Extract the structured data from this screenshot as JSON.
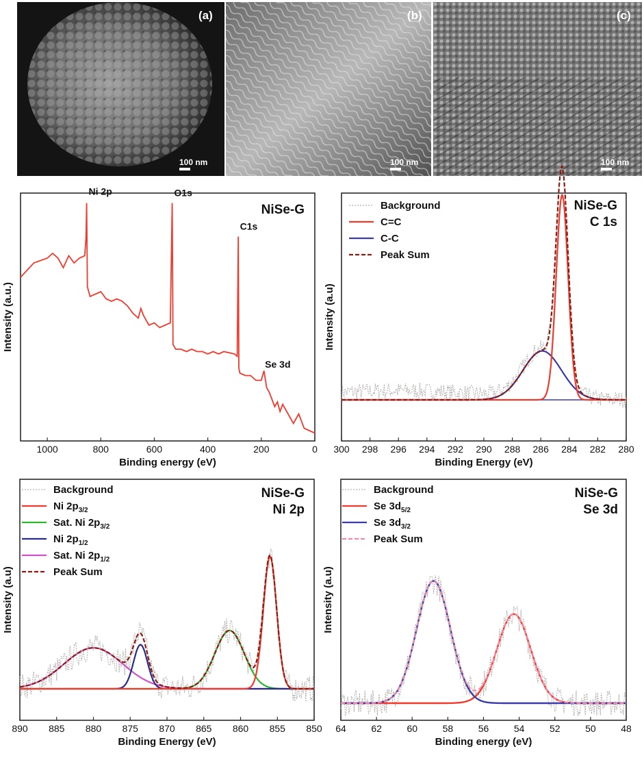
{
  "micrographs": [
    {
      "label": "(a)",
      "scale": "100 nm"
    },
    {
      "label": "(b)",
      "scale": "100 nm"
    },
    {
      "label": "(c)",
      "scale": "100 nm"
    }
  ],
  "colors": {
    "survey": "#f23a2c",
    "cc_double": "#f23a2c",
    "cc_single": "#3a3aa8",
    "peak_sum": "#8b1a0f",
    "background": "#b0aaa8",
    "sat_ni_32": "#2ab52a",
    "ni_12": "#2a2a8a",
    "sat_ni_12": "#d052c8",
    "se_32": "#3a3aa8",
    "se_peak_sum": "#f58aa8"
  },
  "chart_data": [
    {
      "type": "line",
      "panel_title": "NiSe-G",
      "xlabel": "Binding energy (eV)",
      "ylabel": "Intensity (a.u.)",
      "xlim": [
        1100,
        0
      ],
      "xticks": [
        1000,
        800,
        600,
        400,
        200,
        0
      ],
      "series": [
        {
          "x": [
            1100,
            1050,
            1000,
            980,
            960,
            940,
            920,
            900,
            880,
            860,
            855,
            853,
            850,
            840,
            820,
            800,
            780,
            760,
            740,
            720,
            700,
            680,
            660,
            650,
            640,
            620,
            600,
            580,
            560,
            540,
            533,
            530,
            520,
            500,
            480,
            460,
            440,
            420,
            400,
            380,
            360,
            340,
            300,
            290,
            286,
            284,
            280,
            260,
            240,
            220,
            200,
            190,
            180,
            170,
            160,
            150,
            140,
            130,
            120,
            100,
            80,
            60,
            40,
            20,
            0
          ],
          "y": [
            6.6,
            7.2,
            7.4,
            7.6,
            7.4,
            7.0,
            7.5,
            7.2,
            7.4,
            7.5,
            8.3,
            9.7,
            6.2,
            5.8,
            5.9,
            6.0,
            5.7,
            5.6,
            5.7,
            5.6,
            5.4,
            5.1,
            4.9,
            5.3,
            5.0,
            4.6,
            4.7,
            4.5,
            4.6,
            4.7,
            9.7,
            3.8,
            3.6,
            3.6,
            3.5,
            3.6,
            3.5,
            3.5,
            3.4,
            3.5,
            3.4,
            3.5,
            3.4,
            3.3,
            8.3,
            2.8,
            2.6,
            2.5,
            2.5,
            2.3,
            2.3,
            2.7,
            2.0,
            1.8,
            1.5,
            1.2,
            1.4,
            1.0,
            1.3,
            0.9,
            0.5,
            0.9,
            0.3,
            0.2,
            0.1
          ]
        }
      ],
      "annotations": [
        {
          "text": "Ni 2p",
          "x": 853
        },
        {
          "text": "O1s",
          "x": 531
        },
        {
          "text": "C1s",
          "x": 285
        },
        {
          "text": "Se 3d",
          "x": 130
        }
      ]
    },
    {
      "type": "line",
      "panel_title": [
        "NiSe-G",
        "C 1s"
      ],
      "xlabel": "Binding Energy (eV)",
      "ylabel": "Intensity (a.u)",
      "xlim": [
        300,
        280
      ],
      "xticks": [
        300,
        298,
        296,
        294,
        292,
        290,
        288,
        286,
        284,
        282,
        280
      ],
      "legend": [
        "Background",
        "C=C",
        "C-C",
        "Peak Sum"
      ],
      "series": [
        {
          "name": "C=C",
          "peaks": [
            {
              "center": 284.5,
              "height": 0.88,
              "sigma": 0.42
            }
          ]
        },
        {
          "name": "C-C",
          "peaks": [
            {
              "center": 285.9,
              "height": 0.21,
              "sigma": 1.35
            }
          ]
        },
        {
          "name": "Peak Sum",
          "peaks": [
            {
              "center": 284.5,
              "height": 0.88,
              "sigma": 0.42
            },
            {
              "center": 285.9,
              "height": 0.21,
              "sigma": 1.35
            }
          ]
        }
      ]
    },
    {
      "type": "line",
      "panel_title": [
        "NiSe-G",
        "Ni 2p"
      ],
      "xlabel": "Binding Energy (eV)",
      "ylabel": "Intensity (a.u)",
      "xlim": [
        890,
        850
      ],
      "xticks": [
        890,
        885,
        880,
        875,
        870,
        865,
        860,
        855,
        850
      ],
      "legend": [
        {
          "main": "Background",
          "sub": ""
        },
        {
          "main": "Ni 2p",
          "sub": "3/2"
        },
        {
          "main": "Sat. Ni 2p",
          "sub": "3/2"
        },
        {
          "main": "Ni 2p",
          "sub": "1/2"
        },
        {
          "main": "Sat. Ni 2p",
          "sub": "1/2"
        },
        {
          "main": "Peak Sum",
          "sub": ""
        }
      ],
      "series": [
        {
          "name": "Ni 2p3/2",
          "peaks": [
            {
              "center": 856.0,
              "height": 0.84,
              "sigma": 0.9
            }
          ]
        },
        {
          "name": "Sat. Ni 2p3/2",
          "peaks": [
            {
              "center": 861.5,
              "height": 0.37,
              "sigma": 2.0
            }
          ]
        },
        {
          "name": "Ni 2p1/2",
          "peaks": [
            {
              "center": 873.6,
              "height": 0.28,
              "sigma": 0.95
            }
          ]
        },
        {
          "name": "Sat. Ni 2p1/2",
          "peaks": [
            {
              "center": 880.0,
              "height": 0.26,
              "sigma": 4.0
            }
          ]
        },
        {
          "name": "Peak Sum",
          "peaks": [
            {
              "center": 856.0,
              "height": 0.84,
              "sigma": 0.9
            },
            {
              "center": 861.5,
              "height": 0.37,
              "sigma": 2.0
            },
            {
              "center": 873.6,
              "height": 0.28,
              "sigma": 0.95
            },
            {
              "center": 880.0,
              "height": 0.26,
              "sigma": 4.0
            }
          ]
        }
      ]
    },
    {
      "type": "line",
      "panel_title": [
        "NiSe-G",
        "Se 3d"
      ],
      "xlabel": "Binding energy (eV)",
      "ylabel": "Intensity (a.u)",
      "xlim": [
        64,
        48
      ],
      "xticks": [
        64,
        62,
        60,
        58,
        56,
        54,
        52,
        50,
        48
      ],
      "legend": [
        {
          "main": "Background",
          "sub": ""
        },
        {
          "main": "Se 3d",
          "sub": "5/2"
        },
        {
          "main": "Se 3d",
          "sub": "3/2"
        },
        {
          "main": "Peak Sum",
          "sub": ""
        }
      ],
      "series": [
        {
          "name": "Se 3d5/2",
          "peaks": [
            {
              "center": 54.3,
              "height": 0.62,
              "sigma": 0.95
            }
          ]
        },
        {
          "name": "Se 3d3/2",
          "peaks": [
            {
              "center": 58.8,
              "height": 0.85,
              "sigma": 0.95
            }
          ]
        },
        {
          "name": "Peak Sum",
          "peaks": [
            {
              "center": 54.3,
              "height": 0.62,
              "sigma": 0.95
            },
            {
              "center": 58.8,
              "height": 0.85,
              "sigma": 0.95
            }
          ]
        }
      ]
    }
  ]
}
